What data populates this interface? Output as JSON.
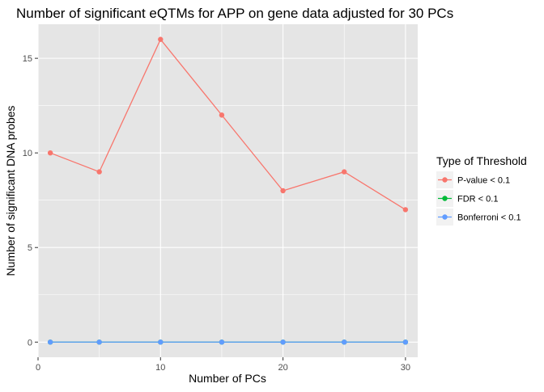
{
  "chart_data": {
    "type": "line",
    "title": "Number of significant eQTMs for APP on gene data adjusted for 30 PCs",
    "xlabel": "Number of PCs",
    "ylabel": "Number of significant DNA probes",
    "xlim": [
      0,
      31
    ],
    "ylim": [
      -0.8,
      16.8
    ],
    "x_ticks": [
      0,
      10,
      20,
      30
    ],
    "y_ticks": [
      0,
      5,
      10,
      15
    ],
    "grid": true,
    "legend_position": "right",
    "legend_title": "Type of Threshold",
    "x": [
      1,
      5,
      10,
      15,
      20,
      25,
      30
    ],
    "series": [
      {
        "name": "P-value < 0.1",
        "color": "#F8766D",
        "values": [
          10,
          9,
          16,
          12,
          8,
          9,
          7
        ]
      },
      {
        "name": "FDR < 0.1",
        "color": "#00BA38",
        "values": [
          0,
          0,
          0,
          0,
          0,
          0,
          0
        ]
      },
      {
        "name": "Bonferroni < 0.1",
        "color": "#619CFF",
        "values": [
          0,
          0,
          0,
          0,
          0,
          0,
          0
        ]
      }
    ],
    "panel_color": "#E5E5E5",
    "grid_color": "#FFFFFF"
  }
}
